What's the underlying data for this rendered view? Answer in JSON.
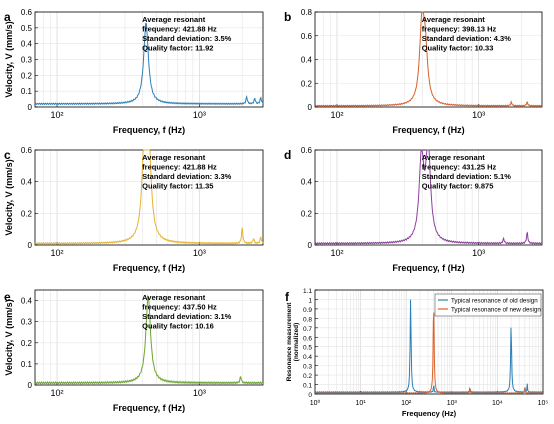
{
  "chart_data": [
    {
      "panel": "a",
      "type": "line",
      "color": "#2C7FB8",
      "xlabel": "Frequency, f (Hz)",
      "ylabel": "Velocity, V (mm/s)",
      "x_scale": "log",
      "xlim": [
        70,
        2800
      ],
      "ylim": [
        0,
        0.6
      ],
      "yticks": [
        "0",
        "0.1",
        "0.2",
        "0.3",
        "0.4",
        "0.5",
        "0.6"
      ],
      "xticks": [
        "10²",
        "10³"
      ],
      "grid": true,
      "annotation": [
        "Average resonant",
        "frequency: 421.88 Hz",
        "Standard deviation: 3.5%",
        "Quality factor: 11.92"
      ],
      "peaks": [
        {
          "f": 422,
          "v": 0.51
        }
      ],
      "minor_peaks": [
        {
          "f": 2150,
          "v": 0.045
        },
        {
          "f": 2450,
          "v": 0.035
        },
        {
          "f": 2700,
          "v": 0.04
        }
      ],
      "base": 0.02
    },
    {
      "panel": "b",
      "type": "line",
      "color": "#D8612A",
      "xlabel": "Frequency, f (Hz)",
      "ylabel": "",
      "x_scale": "log",
      "xlim": [
        70,
        2800
      ],
      "ylim": [
        0,
        0.8
      ],
      "yticks": [
        "0",
        "0.2",
        "0.4",
        "0.6",
        "0.8"
      ],
      "xticks": [
        "10²",
        "10³"
      ],
      "grid": true,
      "annotation": [
        "Average resonant",
        "frequency: 398.13 Hz",
        "Standard deviation: 4.3%",
        "Quality factor: 10.33"
      ],
      "peaks": [
        {
          "f": 398,
          "v": 0.64
        },
        {
          "f": 420,
          "v": 0.4
        }
      ],
      "minor_peaks": [
        {
          "f": 1700,
          "v": 0.03
        },
        {
          "f": 2200,
          "v": 0.03
        }
      ],
      "base": 0.01
    },
    {
      "panel": "c",
      "type": "line",
      "color": "#E6B32F",
      "xlabel": "Frequency, f (Hz)",
      "ylabel": "Velocity, V (mm/s)",
      "x_scale": "log",
      "xlim": [
        70,
        2800
      ],
      "ylim": [
        0,
        0.6
      ],
      "yticks": [
        "0",
        "0.2",
        "0.4",
        "0.6"
      ],
      "xticks": [
        "10²",
        "10³"
      ],
      "grid": true,
      "annotation": [
        "Average resonant",
        "frequency: 421.88 Hz",
        "Standard deviation: 3.3%",
        "Quality factor: 11.35"
      ],
      "peaks": [
        {
          "f": 412,
          "v": 0.6
        },
        {
          "f": 440,
          "v": 0.58
        }
      ],
      "minor_peaks": [
        {
          "f": 2000,
          "v": 0.1
        },
        {
          "f": 2400,
          "v": 0.03
        },
        {
          "f": 2700,
          "v": 0.04
        }
      ],
      "base": 0.01
    },
    {
      "panel": "d",
      "type": "line",
      "color": "#8E3F9E",
      "xlabel": "Frequency, f (Hz)",
      "ylabel": "",
      "x_scale": "log",
      "xlim": [
        70,
        2800
      ],
      "ylim": [
        0,
        0.6
      ],
      "yticks": [
        "0",
        "0.2",
        "0.4",
        "0.6"
      ],
      "xticks": [
        "10²",
        "10³"
      ],
      "grid": true,
      "annotation": [
        "Average resonant",
        "frequency: 431.25 Hz",
        "Standard deviation: 5.1%",
        "Quality factor: 9.875"
      ],
      "peaks": [
        {
          "f": 395,
          "v": 0.52
        },
        {
          "f": 440,
          "v": 0.6
        }
      ],
      "minor_peaks": [
        {
          "f": 1500,
          "v": 0.03
        },
        {
          "f": 2200,
          "v": 0.07
        }
      ],
      "base": 0.01
    },
    {
      "panel": "e",
      "type": "line",
      "color": "#6DA534",
      "xlabel": "Frequency, f (Hz)",
      "ylabel": "Velocity, V (mm/s)",
      "x_scale": "log",
      "xlim": [
        70,
        2800
      ],
      "ylim": [
        0,
        0.45
      ],
      "yticks": [
        "0",
        "0.1",
        "0.2",
        "0.3",
        "0.4"
      ],
      "xticks": [
        "10²",
        "10³"
      ],
      "grid": true,
      "annotation": [
        "Average resonant",
        "frequency: 437.50 Hz",
        "Standard deviation: 3.1%",
        "Quality factor: 10.16"
      ],
      "peaks": [
        {
          "f": 437,
          "v": 0.41
        }
      ],
      "minor_peaks": [
        {
          "f": 1950,
          "v": 0.03
        }
      ],
      "base": 0.01
    },
    {
      "panel": "f",
      "type": "line",
      "xlabel": "Frequency (Hz)",
      "ylabel": "Resonance measurement (normalized)",
      "x_scale": "log",
      "xlim": [
        1,
        100000
      ],
      "ylim": [
        0,
        1.1
      ],
      "yticks": [
        "0",
        "0.1",
        "0.2",
        "0.3",
        "0.4",
        "0.5",
        "0.6",
        "0.7",
        "0.8",
        "0.9",
        "1",
        "1.1"
      ],
      "xticks": [
        "10⁰",
        "10¹",
        "10²",
        "10³",
        "10⁴",
        "10⁵"
      ],
      "grid": true,
      "legend_position": "top-right",
      "series": [
        {
          "name": "Typical resonance of old design",
          "color": "#2C7FB8",
          "base": 0.02,
          "peaks": [
            {
              "f": 125,
              "v": 1.0
            },
            {
              "f": 20000,
              "v": 0.74
            }
          ],
          "minor_peaks": [
            {
              "f": 400,
              "v": 0.12
            },
            {
              "f": 2500,
              "v": 0.07
            },
            {
              "f": 45000,
              "v": 0.1
            }
          ]
        },
        {
          "name": "Typical resonance of new design",
          "color": "#D8612A",
          "base": 0.01,
          "peaks": [
            {
              "f": 400,
              "v": 1.0
            }
          ],
          "minor_peaks": [
            {
              "f": 2500,
              "v": 0.08
            },
            {
              "f": 40000,
              "v": 0.12
            }
          ]
        }
      ]
    }
  ]
}
